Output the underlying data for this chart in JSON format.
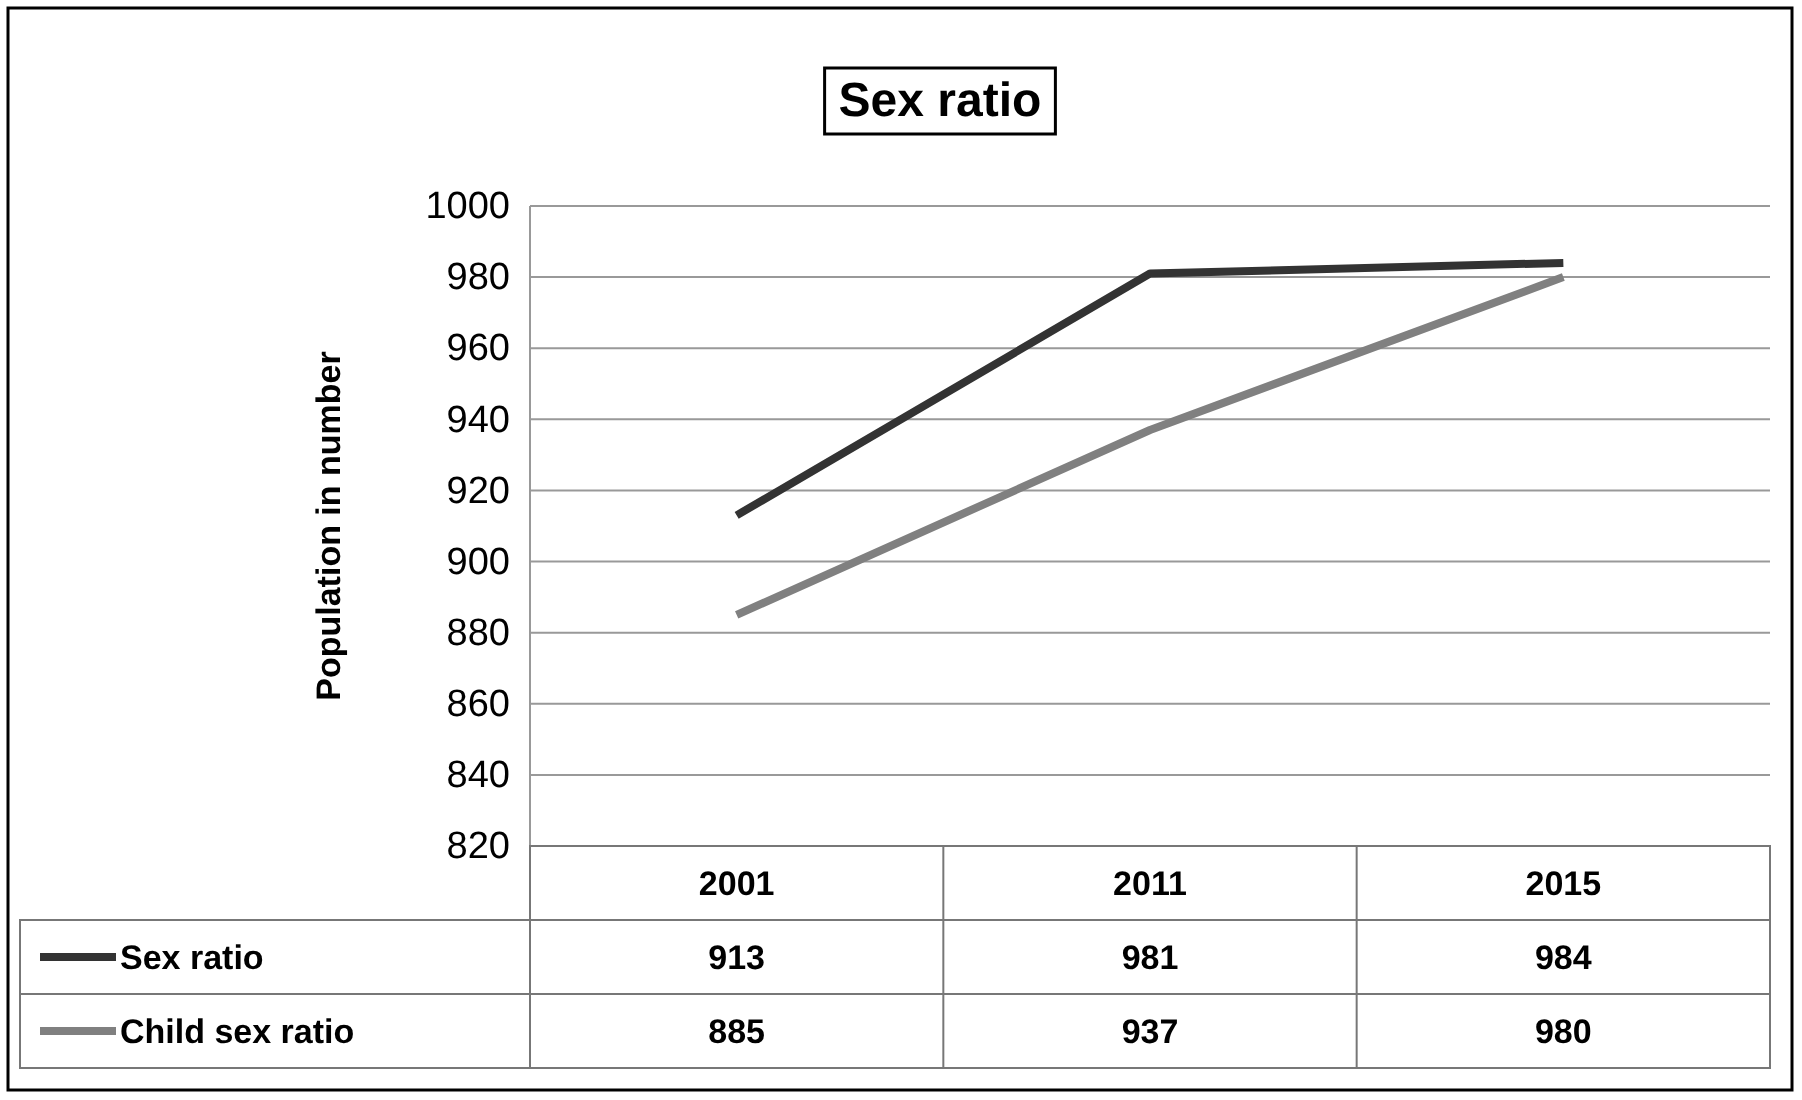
{
  "chart_data": {
    "type": "line",
    "title": "Sex ratio",
    "ylabel": "Population in number",
    "categories": [
      "2001",
      "2011",
      "2015"
    ],
    "series": [
      {
        "name": "Sex ratio",
        "color": "#333333",
        "values": [
          913,
          981,
          984
        ]
      },
      {
        "name": "Child sex ratio",
        "color": "#808080",
        "values": [
          885,
          937,
          980
        ]
      }
    ],
    "ylim": [
      820,
      1000
    ],
    "yticks": [
      820,
      840,
      860,
      880,
      900,
      920,
      940,
      960,
      980,
      1000
    ],
    "grid": "y",
    "data_labels": true,
    "legend": "bottom",
    "marker": "none",
    "line_style": "solid"
  }
}
